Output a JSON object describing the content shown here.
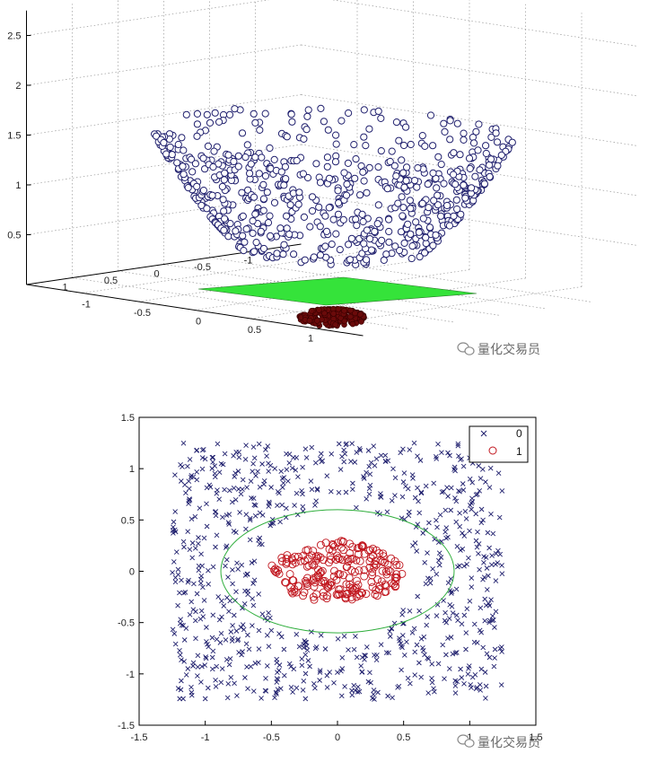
{
  "watermark": "量化交易员",
  "colors": {
    "class0": "#20206e",
    "class1": "#c0141c",
    "class1_3d": "#6a0a0a",
    "boundary_3d_plane": "#35e33a",
    "boundary_2d_circle": "#2fae3c",
    "grid": "#9a9a9a",
    "axis": "#000000"
  },
  "chart_data": [
    {
      "type": "scatter",
      "projection": "3d",
      "title": "",
      "xlabel": "",
      "ylabel": "",
      "zlabel": "",
      "xlim": [
        -1.5,
        1.5
      ],
      "ylim": [
        -1.5,
        1.5
      ],
      "zlim": [
        0,
        3
      ],
      "z_ticks": [
        "0.5",
        "1",
        "1.5",
        "2",
        "2.5"
      ],
      "y_ticks_left": [
        "1",
        "0.5",
        "0",
        "-0.5",
        "-1"
      ],
      "x_ticks_right": [
        "-1",
        "-0.5",
        "0",
        "0.5",
        "1"
      ],
      "grid": true,
      "series": [
        {
          "class": "0",
          "marker": "circle",
          "color": "#20206e",
          "description_of_values": "z = x^2 + y^2 for points with 0.6 <= radius <= 1.25"
        },
        {
          "class": "1",
          "marker": "circle",
          "color": "#6a0a0a",
          "description_of_values": "z = x^2 + y^2 for points with radius <= 0.35"
        }
      ],
      "plane": {
        "z": 0.36,
        "color": "#35e33a"
      }
    },
    {
      "type": "scatter",
      "title": "",
      "xlabel": "",
      "ylabel": "",
      "xlim": [
        -1.5,
        1.5
      ],
      "ylim": [
        -1.5,
        1.5
      ],
      "x_ticks": [
        "-1.5",
        "-1",
        "-0.5",
        "0",
        "0.5",
        "1",
        "1.5"
      ],
      "y_ticks": [
        "1.5",
        "1",
        "0.5",
        "0",
        "-0.5",
        "-1",
        "-1.5"
      ],
      "legend": {
        "position": "top-right",
        "entries": [
          {
            "label": "0",
            "marker": "x",
            "color": "#20206e"
          },
          {
            "label": "1",
            "marker": "circle",
            "color": "#c0141c"
          }
        ]
      },
      "series": [
        {
          "name": "0",
          "marker": "x",
          "color": "#20206e",
          "count": 800,
          "region": "uniform square [-1.25,1.25]^2 outside radius 0.6"
        },
        {
          "name": "1",
          "marker": "circle",
          "color": "#c0141c",
          "count": 220,
          "region": "disc radius 0.35 centred at (0,0)"
        }
      ],
      "decision_boundary": {
        "shape": "circle",
        "center": [
          0,
          0
        ],
        "radius": 0.6,
        "color": "#2fae3c"
      }
    }
  ]
}
